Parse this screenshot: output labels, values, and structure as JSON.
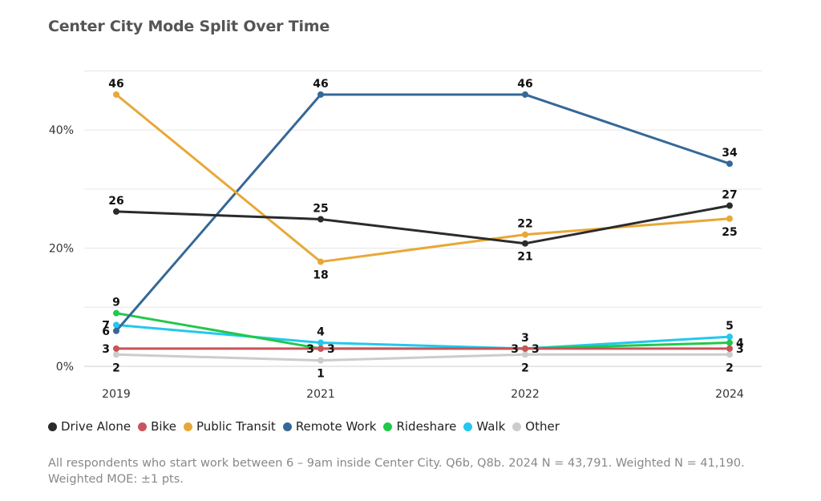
{
  "chart_data": {
    "type": "line",
    "title": "Center City Mode Split Over Time",
    "xlabel": "",
    "ylabel": "",
    "categories": [
      "2019",
      "2021",
      "2022",
      "2024"
    ],
    "ylim": [
      0,
      50
    ],
    "yticks": [
      {
        "value": 0,
        "label": "0%"
      },
      {
        "value": 20,
        "label": "20%"
      },
      {
        "value": 40,
        "label": "40%"
      }
    ],
    "gridlines": [
      0,
      10,
      20,
      30,
      40,
      50
    ],
    "series": [
      {
        "name": "Drive Alone",
        "color": "#2b2b2b",
        "values": [
          26.2,
          24.9,
          20.8,
          27.2
        ],
        "labels": [
          "26",
          "25",
          "21",
          "27"
        ],
        "label_pos": [
          "above",
          "above",
          "below",
          "above"
        ]
      },
      {
        "name": "Bike",
        "color": "#c9545a",
        "values": [
          3,
          3,
          3,
          3
        ],
        "labels": [
          "3",
          "3",
          "3",
          "3"
        ],
        "label_pos": [
          "left",
          "right",
          "right",
          "right"
        ]
      },
      {
        "name": "Public Transit",
        "color": "#e8a838",
        "values": [
          46,
          17.7,
          22.3,
          25
        ],
        "labels": [
          "46",
          "18",
          "22",
          "25"
        ],
        "label_pos": [
          "above",
          "below",
          "above",
          "below"
        ]
      },
      {
        "name": "Remote Work",
        "color": "#356897",
        "values": [
          6,
          46,
          46,
          34.3
        ],
        "labels": [
          "6",
          "46",
          "46",
          "34"
        ],
        "label_pos": [
          "left",
          "above",
          "above",
          "above"
        ]
      },
      {
        "name": "Rideshare",
        "color": "#22c84a",
        "values": [
          9,
          3,
          3,
          4
        ],
        "labels": [
          "9",
          "3",
          "3",
          "4"
        ],
        "label_pos": [
          "above",
          "left",
          "left",
          "right"
        ]
      },
      {
        "name": "Walk",
        "color": "#22c8ee",
        "values": [
          7,
          4,
          3,
          5
        ],
        "labels": [
          "7",
          "4",
          "3",
          "5"
        ],
        "label_pos": [
          "left",
          "above",
          "above",
          "above"
        ]
      },
      {
        "name": "Other",
        "color": "#cccccc",
        "values": [
          2,
          1,
          2,
          2
        ],
        "labels": [
          "2",
          "1",
          "2",
          "2"
        ],
        "label_pos": [
          "below",
          "below",
          "below",
          "below"
        ]
      }
    ]
  },
  "legend": [
    {
      "label": "Drive Alone",
      "color": "#2b2b2b"
    },
    {
      "label": "Bike",
      "color": "#c9545a"
    },
    {
      "label": "Public Transit",
      "color": "#e8a838"
    },
    {
      "label": "Remote Work",
      "color": "#356897"
    },
    {
      "label": "Rideshare",
      "color": "#22c84a"
    },
    {
      "label": "Walk",
      "color": "#22c8ee"
    },
    {
      "label": "Other",
      "color": "#cccccc"
    }
  ],
  "footnote": "All respondents who start work between 6 – 9am inside Center City. Q6b, Q8b. 2024 N = 43,791. Weighted N = 41,190. Weighted MOE: ±1 pts."
}
